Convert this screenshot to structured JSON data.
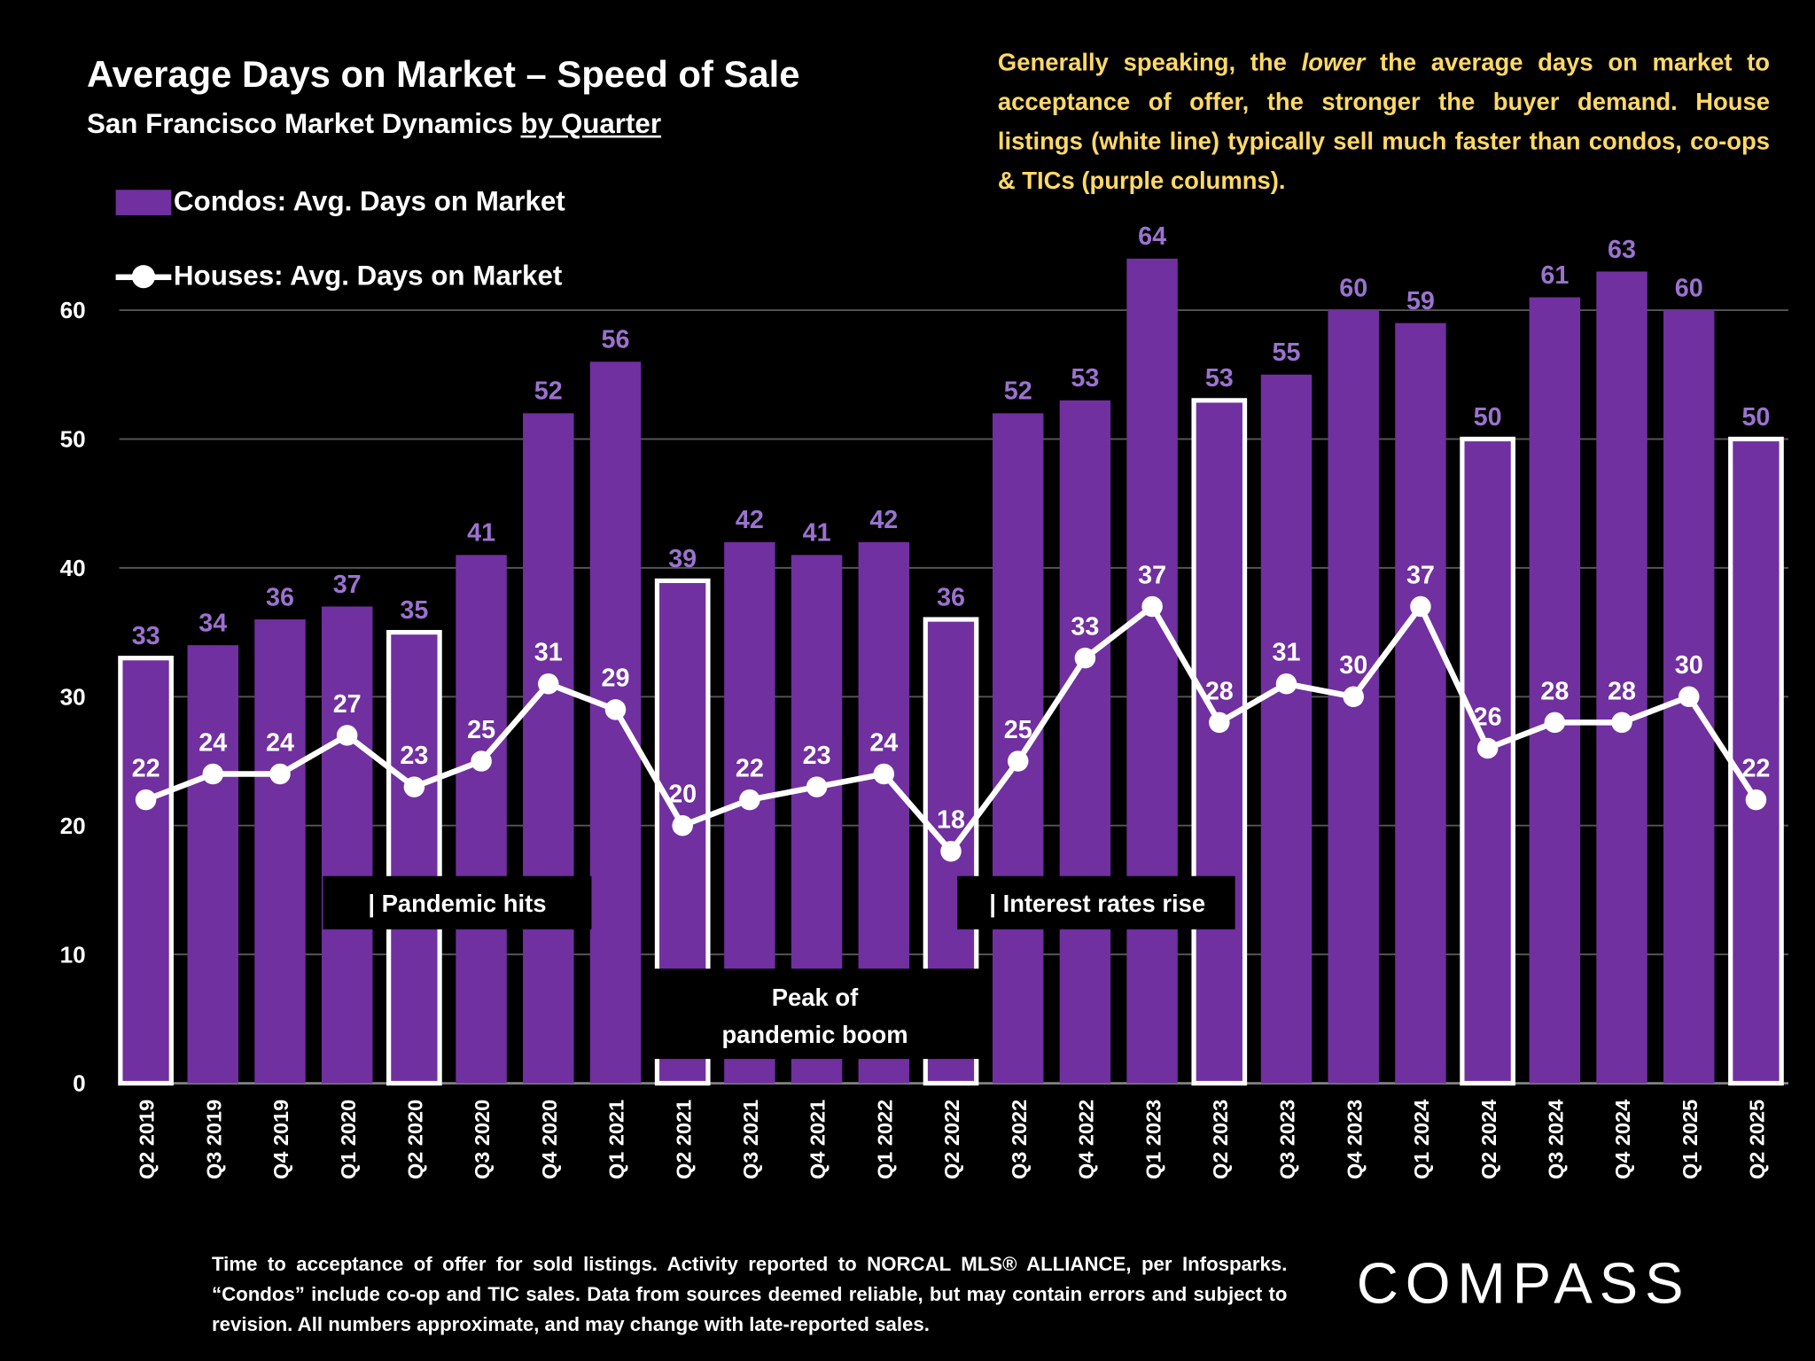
{
  "title": "Average Days on Market – Speed of Sale",
  "subtitle_prefix": "San Francisco Market Dynamics ",
  "subtitle_underlined": "by Quarter",
  "note": {
    "part1": "Generally speaking, the ",
    "emphasis": "lower",
    "part2": " the average days on market to acceptance of offer, the stronger the buyer demand.  House listings (white line) typically sell much faster than condos, co-ops & TICs (purple columns)."
  },
  "footer": "Time to acceptance of offer for sold listings. Activity reported to NORCAL MLS® ALLIANCE, per Infosparks. “Condos” include co-op and TIC sales. Data from sources deemed reliable, but may contain errors and subject to revision. All numbers approximate, and may change with late-reported sales.",
  "logo": "COMPASS",
  "colors": {
    "condo_bar": "#7030a0",
    "condo_label": "#9b72cf",
    "note": "#ffd966",
    "house_line": "#ffffff"
  },
  "chart_data": {
    "type": "bar",
    "title": "Average Days on Market – Speed of Sale",
    "xlabel": "",
    "ylabel": "",
    "ylim": [
      0,
      64
    ],
    "yticks": [
      "0",
      "10",
      "20",
      "30",
      "40",
      "50",
      "60"
    ],
    "grid": true,
    "legend_placement": "top-left",
    "categories": [
      "Q2 2019",
      "Q3 2019",
      "Q4 2019",
      "Q1 2020",
      "Q2 2020",
      "Q3 2020",
      "Q4 2020",
      "Q1 2021",
      "Q2 2021",
      "Q3 2021",
      "Q4 2021",
      "Q1 2022",
      "Q2 2022",
      "Q3 2022",
      "Q4 2022",
      "Q1 2023",
      "Q2 2023",
      "Q3 2023",
      "Q4 2023",
      "Q1 2024",
      "Q2 2024",
      "Q3 2024",
      "Q4 2024",
      "Q1 2025",
      "Q2 2025"
    ],
    "series": [
      {
        "name": "Condos: Avg. Days on Market",
        "type": "bar",
        "values": [
          33,
          34,
          36,
          37,
          35,
          41,
          52,
          56,
          39,
          42,
          41,
          42,
          36,
          52,
          53,
          64,
          53,
          55,
          60,
          59,
          50,
          61,
          63,
          60,
          50
        ]
      },
      {
        "name": "Houses: Avg. Days on Market",
        "type": "line",
        "values": [
          22,
          24,
          24,
          27,
          23,
          25,
          31,
          29,
          20,
          22,
          23,
          24,
          18,
          25,
          33,
          37,
          28,
          31,
          30,
          37,
          26,
          28,
          28,
          30,
          22
        ]
      }
    ],
    "highlighted_quarters": [
      "Q2 2019",
      "Q2 2020",
      "Q2 2021",
      "Q2 2022",
      "Q2 2023",
      "Q2 2024",
      "Q2 2025"
    ],
    "annotations": [
      "| Pandemic hits",
      "Peak of",
      "pandemic boom",
      "| Interest rates rise"
    ]
  }
}
